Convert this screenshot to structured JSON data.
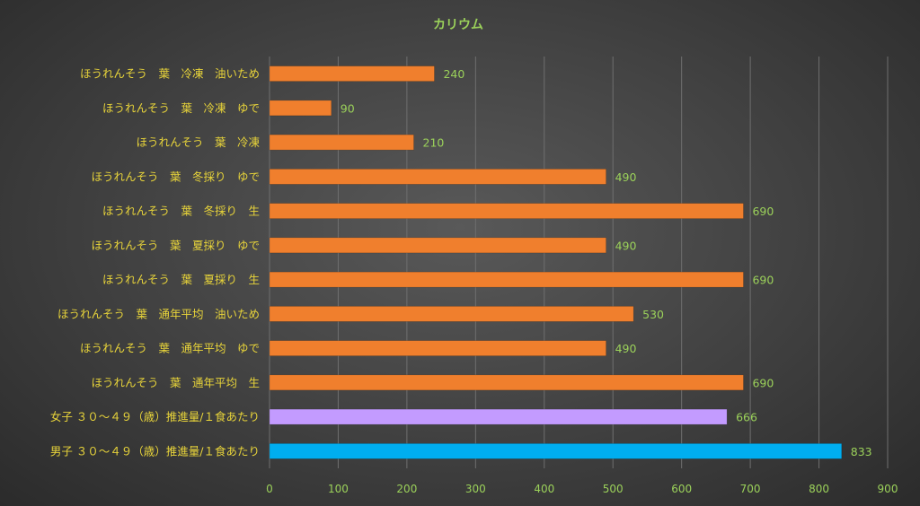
{
  "chart_data": {
    "type": "bar",
    "orientation": "horizontal",
    "title": "カリウム",
    "categories": [
      "ほうれんそう　葉　冷凍　油いため",
      "ほうれんそう　葉　冷凍　ゆで",
      "ほうれんそう　葉　冷凍",
      "ほうれんそう　葉　冬採り　ゆで",
      "ほうれんそう　葉　冬採り　生",
      "ほうれんそう　葉　夏採り　ゆで",
      "ほうれんそう　葉　夏採り　生",
      "ほうれんそう　葉　通年平均　油いため",
      "ほうれんそう　葉　通年平均　ゆで",
      "ほうれんそう　葉　通年平均　生",
      "女子 ３０～４９（歳）推進量/１食あたり",
      "男子 ３０～４９（歳）推進量/１食あたり"
    ],
    "values": [
      240,
      90,
      210,
      490,
      690,
      490,
      690,
      530,
      490,
      690,
      666,
      833
    ],
    "bar_colors": [
      "#f07f2d",
      "#f07f2d",
      "#f07f2d",
      "#f07f2d",
      "#f07f2d",
      "#f07f2d",
      "#f07f2d",
      "#f07f2d",
      "#f07f2d",
      "#f07f2d",
      "#c39bff",
      "#00aef0"
    ],
    "xlim": [
      0,
      900
    ],
    "x_ticks": [
      0,
      100,
      200,
      300,
      400,
      500,
      600,
      700,
      800,
      900
    ],
    "grid": "vertical",
    "legend": "none"
  }
}
